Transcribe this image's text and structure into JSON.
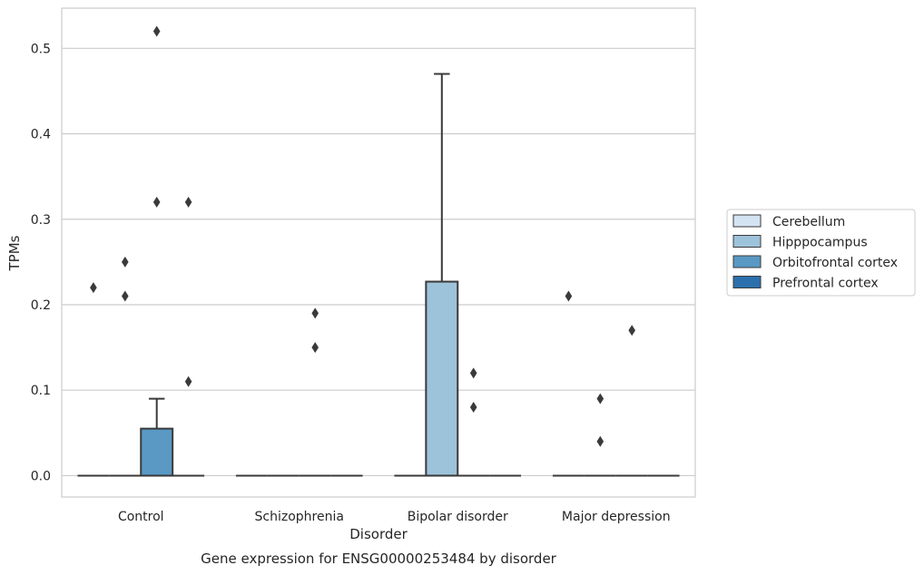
{
  "chart_data": {
    "type": "box",
    "title": "",
    "caption": "Gene expression for ENSG00000253484 by disorder",
    "xlabel": "Disorder",
    "ylabel": "TPMs",
    "ylim": [
      -0.025,
      0.547
    ],
    "yticks": [
      0.0,
      0.1,
      0.2,
      0.3,
      0.4,
      0.5
    ],
    "ytick_labels": [
      "0.0",
      "0.1",
      "0.2",
      "0.3",
      "0.4",
      "0.5"
    ],
    "grid": "horizontal",
    "legend_position": "right",
    "categories": [
      "Control",
      "Schizophrenia",
      "Bipolar disorder",
      "Major depression"
    ],
    "series": [
      {
        "name": "Cerebellum",
        "color": "#d4e3f1",
        "boxes": [
          {
            "category": "Control",
            "q1": 0.0,
            "median": 0.0,
            "q3": 0.0,
            "whisker_low": 0.0,
            "whisker_high": 0.0,
            "outliers": [
              0.22
            ]
          },
          {
            "category": "Schizophrenia",
            "q1": 0.0,
            "median": 0.0,
            "q3": 0.0,
            "whisker_low": 0.0,
            "whisker_high": 0.0,
            "outliers": []
          },
          {
            "category": "Bipolar disorder",
            "q1": 0.0,
            "median": 0.0,
            "q3": 0.0,
            "whisker_low": 0.0,
            "whisker_high": 0.0,
            "outliers": []
          },
          {
            "category": "Major depression",
            "q1": 0.0,
            "median": 0.0,
            "q3": 0.0,
            "whisker_low": 0.0,
            "whisker_high": 0.0,
            "outliers": [
              0.21
            ]
          }
        ]
      },
      {
        "name": "Hipppocampus",
        "color": "#9dc3da",
        "boxes": [
          {
            "category": "Control",
            "q1": 0.0,
            "median": 0.0,
            "q3": 0.0,
            "whisker_low": 0.0,
            "whisker_high": 0.0,
            "outliers": [
              0.25,
              0.21
            ]
          },
          {
            "category": "Schizophrenia",
            "q1": 0.0,
            "median": 0.0,
            "q3": 0.0,
            "whisker_low": 0.0,
            "whisker_high": 0.0,
            "outliers": []
          },
          {
            "category": "Bipolar disorder",
            "q1": 0.0,
            "median": 0.0,
            "q3": 0.227,
            "whisker_low": 0.0,
            "whisker_high": 0.47,
            "outliers": []
          },
          {
            "category": "Major depression",
            "q1": 0.0,
            "median": 0.0,
            "q3": 0.0,
            "whisker_low": 0.0,
            "whisker_high": 0.0,
            "outliers": [
              0.04,
              0.09
            ]
          }
        ]
      },
      {
        "name": "Orbitofrontal cortex",
        "color": "#5999c4",
        "boxes": [
          {
            "category": "Control",
            "q1": 0.0,
            "median": 0.0,
            "q3": 0.055,
            "whisker_low": 0.0,
            "whisker_high": 0.09,
            "outliers": [
              0.52,
              0.32
            ]
          },
          {
            "category": "Schizophrenia",
            "q1": 0.0,
            "median": 0.0,
            "q3": 0.0,
            "whisker_low": 0.0,
            "whisker_high": 0.0,
            "outliers": [
              0.15,
              0.19
            ]
          },
          {
            "category": "Bipolar disorder",
            "q1": 0.0,
            "median": 0.0,
            "q3": 0.0,
            "whisker_low": 0.0,
            "whisker_high": 0.0,
            "outliers": [
              0.08,
              0.12
            ]
          },
          {
            "category": "Major depression",
            "q1": 0.0,
            "median": 0.0,
            "q3": 0.0,
            "whisker_low": 0.0,
            "whisker_high": 0.0,
            "outliers": [
              0.17
            ]
          }
        ]
      },
      {
        "name": "Prefrontal cortex",
        "color": "#2c6fad",
        "boxes": [
          {
            "category": "Control",
            "q1": 0.0,
            "median": 0.0,
            "q3": 0.0,
            "whisker_low": 0.0,
            "whisker_high": 0.0,
            "outliers": [
              0.11,
              0.32
            ]
          },
          {
            "category": "Schizophrenia",
            "q1": 0.0,
            "median": 0.0,
            "q3": 0.0,
            "whisker_low": 0.0,
            "whisker_high": 0.0,
            "outliers": []
          },
          {
            "category": "Bipolar disorder",
            "q1": 0.0,
            "median": 0.0,
            "q3": 0.0,
            "whisker_low": 0.0,
            "whisker_high": 0.0,
            "outliers": []
          },
          {
            "category": "Major depression",
            "q1": 0.0,
            "median": 0.0,
            "q3": 0.0,
            "whisker_low": 0.0,
            "whisker_high": 0.0,
            "outliers": []
          }
        ]
      }
    ],
    "colors": {
      "grid": "#cccccc",
      "frame": "#cccccc",
      "box_line": "#3a3a3a",
      "outlier": "#3a3a3a"
    }
  }
}
